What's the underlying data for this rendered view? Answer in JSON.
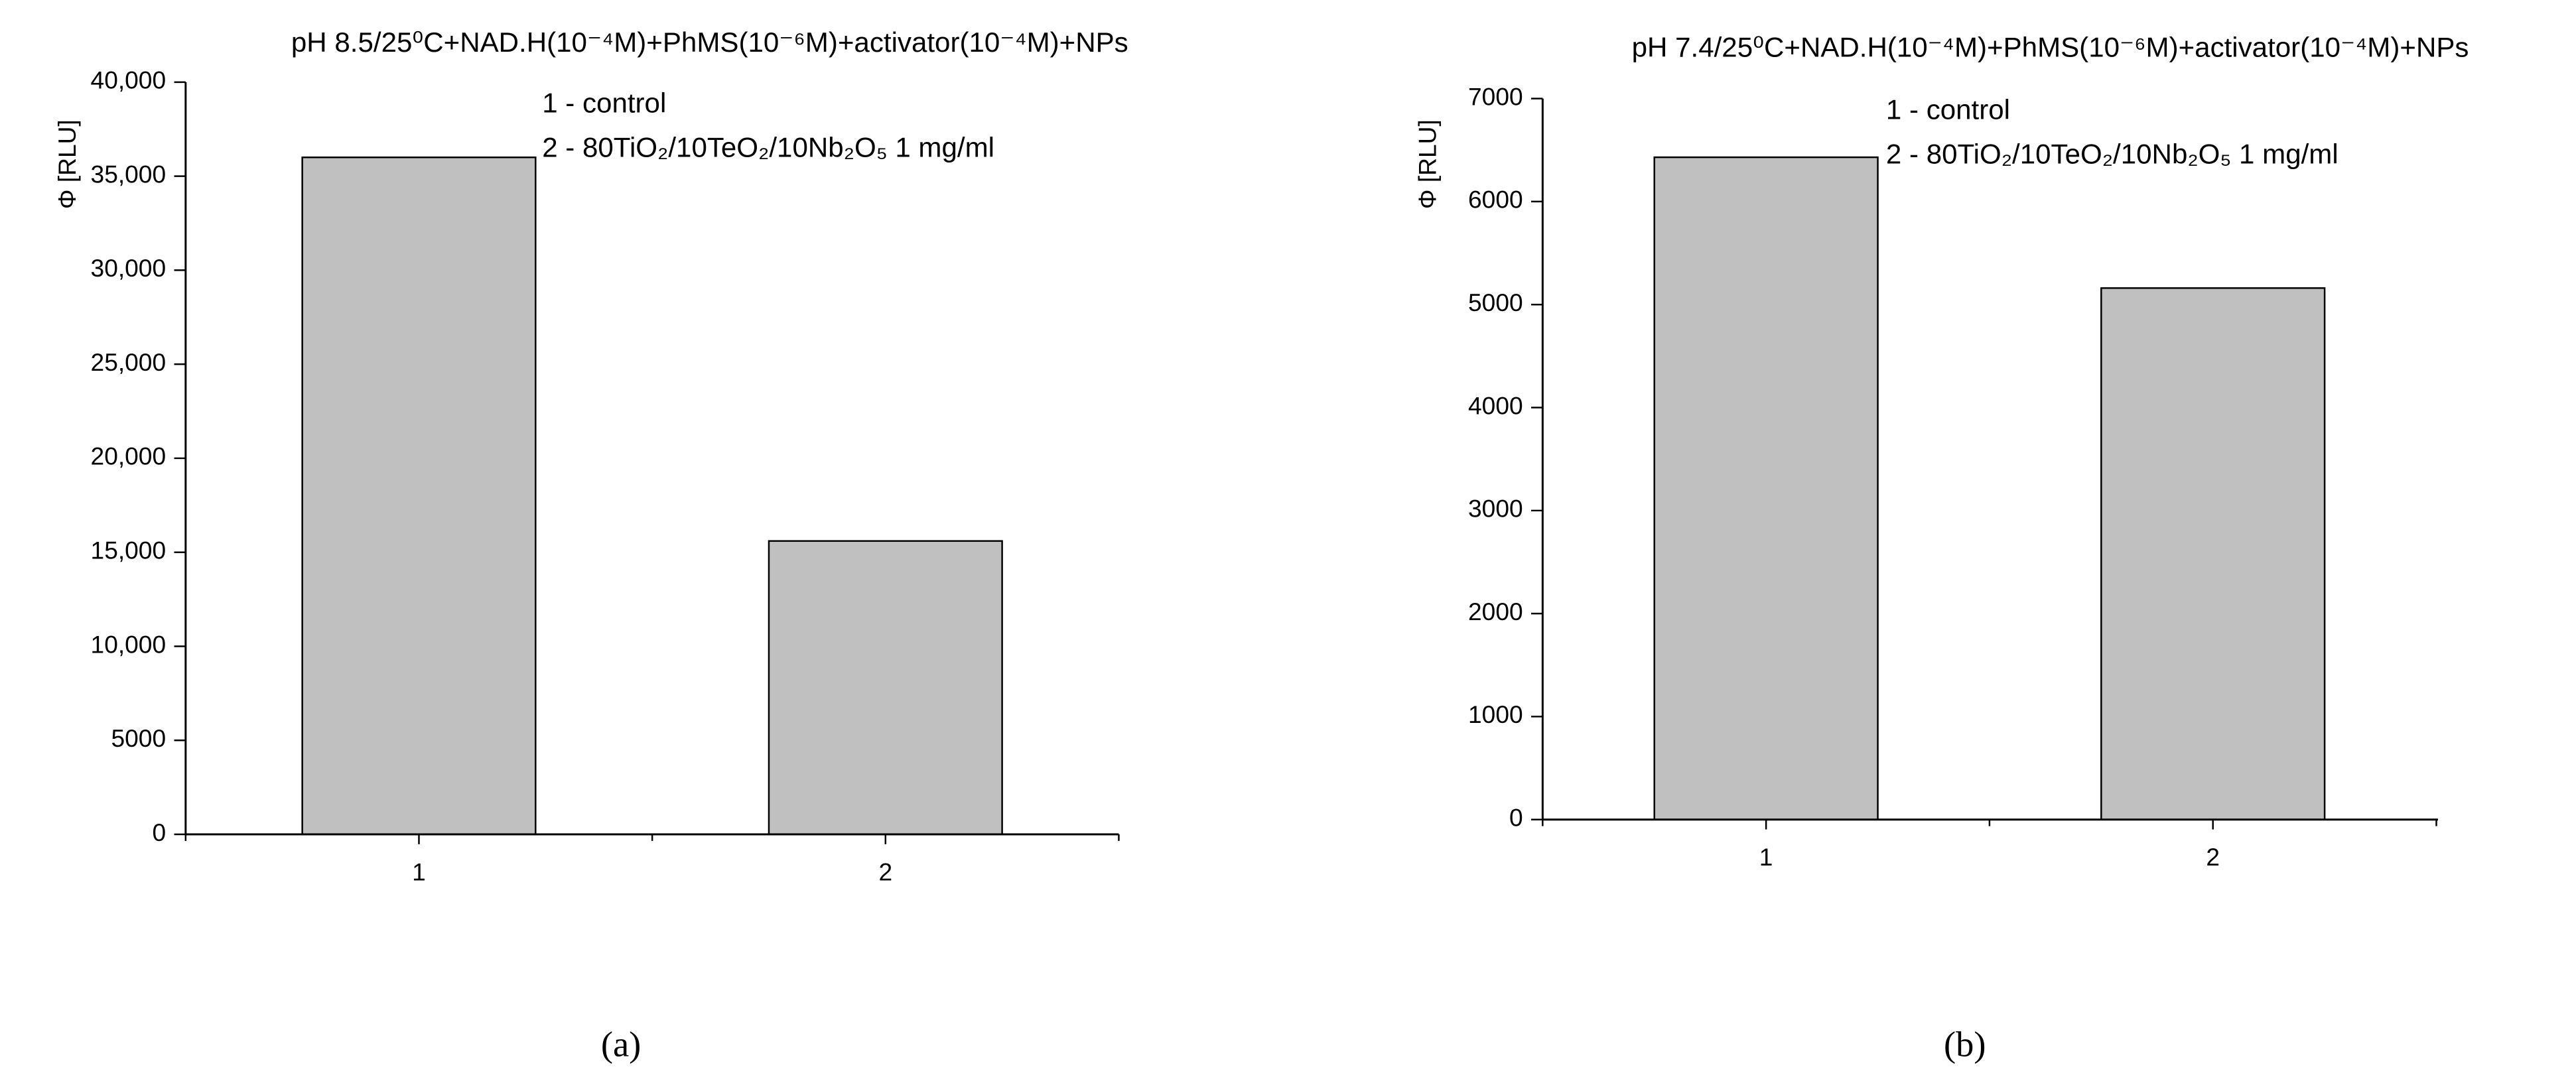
{
  "chart_data": [
    {
      "type": "bar",
      "title": "pH 8.5/25⁰C+NAD.H(10⁻⁴M)+PhMS(10⁻⁶M)+activator(10⁻⁴M)+NPs",
      "y_label": "Φ [RLU]",
      "legend": [
        "1 - control",
        "2 - 80TiO₂/10TeO₂/10Nb₂O₅ 1 mg/ml"
      ],
      "categories": [
        "1",
        "2"
      ],
      "values": [
        36000,
        15600
      ],
      "color": "#c0c0c0",
      "ylim": [
        0,
        40000
      ],
      "yticks": [
        0,
        5000,
        {
          "value": 10000,
          "label": "10,000"
        },
        {
          "value": 15000,
          "label": "15,000"
        },
        {
          "value": 20000,
          "label": "20,000"
        },
        {
          "value": 25000,
          "label": "25,000"
        },
        {
          "value": 30000,
          "label": "30,000"
        },
        {
          "value": 35000,
          "label": "35,000"
        },
        {
          "value": 40000,
          "label": "40,000"
        }
      ],
      "panel_label": "(a)"
    },
    {
      "type": "bar",
      "title": "pH 7.4/25⁰C+NAD.H(10⁻⁴M)+PhMS(10⁻⁶M)+activator(10⁻⁴M)+NPs",
      "y_label": "Φ [RLU]",
      "legend": [
        "1 - control",
        "2 - 80TiO₂/10TeO₂/10Nb₂O₅ 1 mg/ml"
      ],
      "categories": [
        "1",
        "2"
      ],
      "values": [
        6430,
        5160
      ],
      "color": "#c0c0c0",
      "ylim": [
        0,
        7000
      ],
      "yticks": [
        0,
        1000,
        2000,
        3000,
        4000,
        5000,
        6000,
        7000
      ],
      "panel_label": "(b)"
    }
  ]
}
